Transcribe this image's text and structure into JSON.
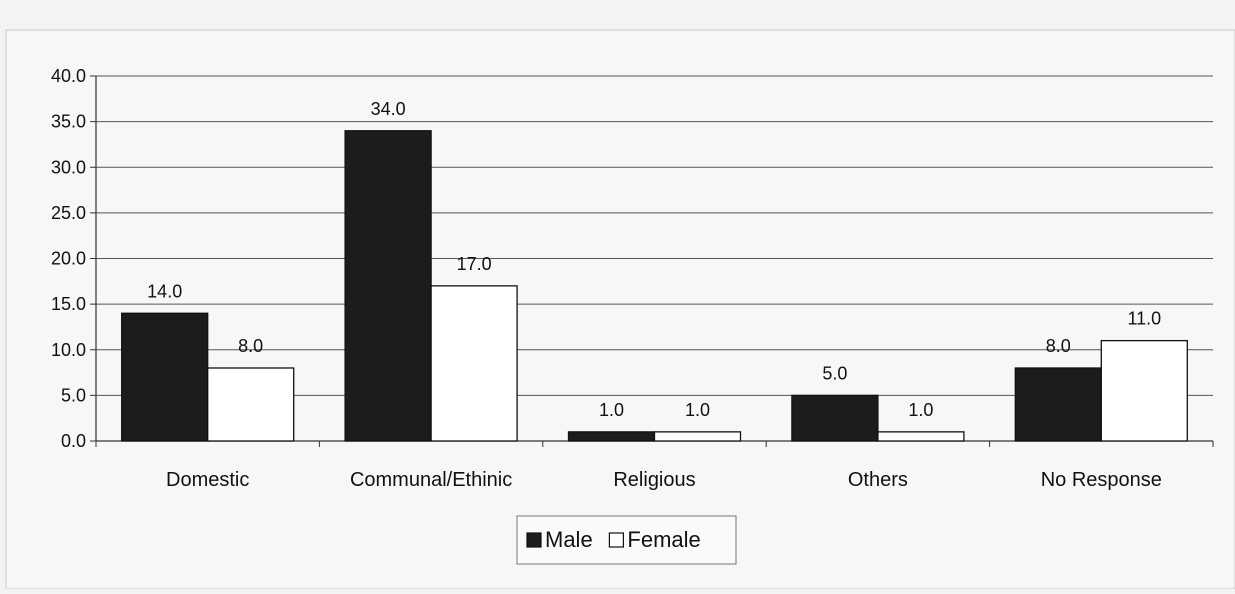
{
  "chart_data": {
    "type": "bar",
    "categories": [
      "Domestic",
      "Communal/Ethinic",
      "Religious",
      "Others",
      "No Response"
    ],
    "series": [
      {
        "name": "Male",
        "values": [
          14.0,
          34.0,
          1.0,
          5.0,
          8.0
        ],
        "color": "#1c1c1c"
      },
      {
        "name": "Female",
        "values": [
          8.0,
          17.0,
          1.0,
          1.0,
          11.0
        ],
        "color": "#ffffff"
      }
    ],
    "title": "",
    "xlabel": "",
    "ylabel": "",
    "ylim": [
      0,
      40
    ],
    "yticks": [
      "0.0",
      "5.0",
      "10.0",
      "15.0",
      "20.0",
      "25.0",
      "30.0",
      "35.0",
      "40.0"
    ],
    "data_labels": true,
    "value_format": "0.0",
    "grid": true,
    "legend": "bottom-center",
    "legend_symbols": [
      "■",
      "□"
    ]
  }
}
